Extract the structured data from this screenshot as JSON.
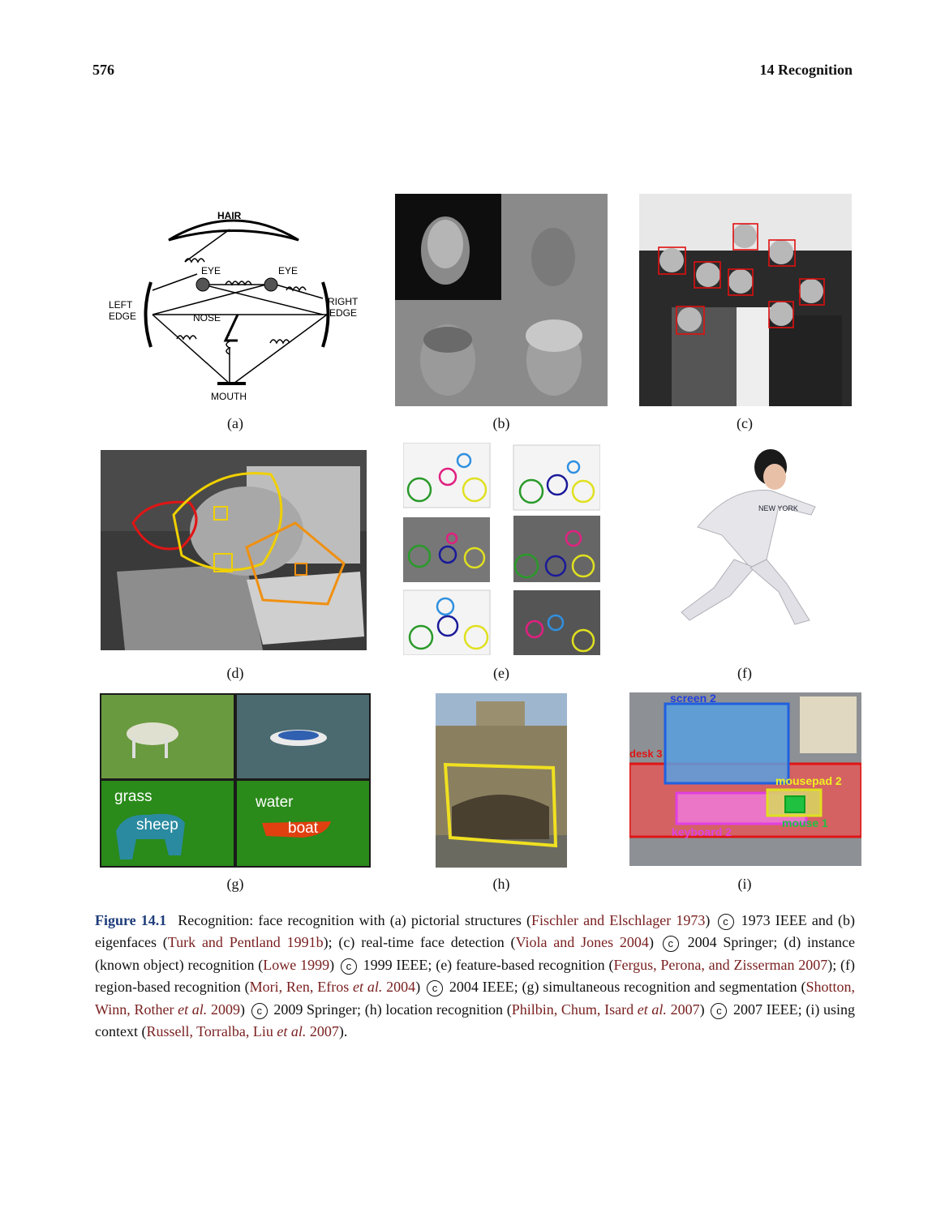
{
  "page": {
    "number": "576",
    "chapter": "14  Recognition"
  },
  "panel_a": {
    "hair": "HAIR",
    "eye_left": "EYE",
    "eye_right": "EYE",
    "nose": "NOSE",
    "mouth": "MOUTH",
    "left_edge_1": "LEFT",
    "left_edge_2": "EDGE",
    "right_edge_1": "RIGHT",
    "right_edge_2": "EDGE"
  },
  "panel_g": {
    "grass": "grass",
    "sheep": "sheep",
    "water": "water",
    "boat": "boat"
  },
  "panel_i": {
    "screen": "screen 2",
    "desk": "desk 3",
    "mousepad": "mousepad 2",
    "mouse": "mouse 1",
    "keyboard": "keyboard 2"
  },
  "panel_f": {
    "jersey": "NEW YORK"
  },
  "subfigure_labels": [
    "(a)",
    "(b)",
    "(c)",
    "(d)",
    "(e)",
    "(f)",
    "(g)",
    "(h)",
    "(i)"
  ],
  "caption": {
    "label": "Figure 14.1",
    "t1": "Recognition: face recognition with (a) pictorial structures (",
    "c1": "Fischler and Elschlager 1973",
    "t2": ") ",
    "t3": " 1973 IEEE and (b) eigenfaces (",
    "c2": "Turk and Pentland 1991b",
    "t4": ");   (c) real-time face detection (",
    "c3": "Viola and Jones 2004",
    "t5": ") ",
    "t6": " 2004 Springer; (d) instance (known object) recognition (",
    "c4": "Lowe 1999",
    "t7": ") ",
    "t8": " 1999 IEEE; (e) feature-based recognition (",
    "c5": "Fergus, Perona, and Zisserman 2007",
    "t9": "); (f) region-based recognition (",
    "c6a": "Mori, Ren, Efros ",
    "c6b": "et al.",
    "c6c": " 2004",
    "t10": ") ",
    "t11": " 2004 IEEE; (g) simultaneous recognition and segmentation (",
    "c7a": "Shotton, Winn, Rother ",
    "c7b": "et al.",
    "c7c": " 2009",
    "t12": ") ",
    "t13": " 2009 Springer; (h) location recognition (",
    "c8a": "Philbin, Chum, Isard ",
    "c8b": "et al.",
    "c8c": " 2007",
    "t14": ") ",
    "t15": " 2007 IEEE; (i) using context (",
    "c9a": "Russell, Torralba, Liu ",
    "c9b": "et al.",
    "c9c": " 2007",
    "t16": ").",
    "copyright_symbol": "c"
  }
}
